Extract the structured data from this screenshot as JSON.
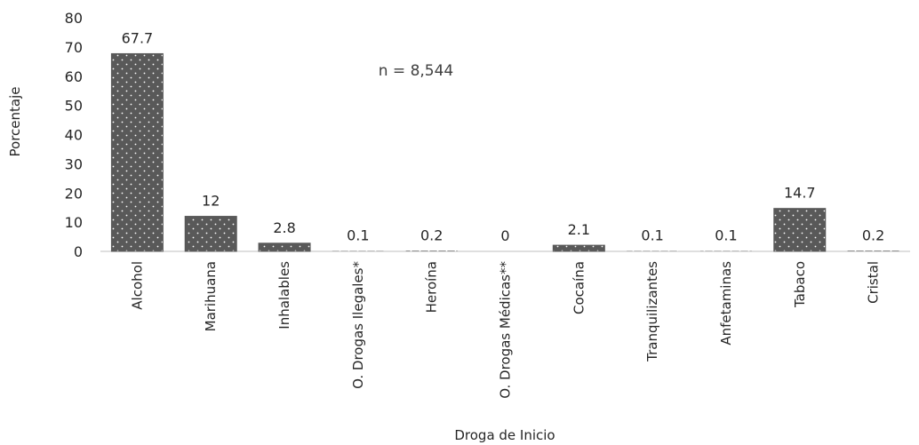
{
  "chart_data": {
    "type": "bar",
    "xlabel": "Droga de Inicio",
    "ylabel": "Porcentaje",
    "ylim": [
      0,
      80
    ],
    "yticks": [
      0,
      10,
      20,
      30,
      40,
      50,
      60,
      70,
      80
    ],
    "categories": [
      "Alcohol",
      "Marihuana",
      "Inhalables",
      "O. Drogas Ilegales*",
      "Heroína",
      "O. Drogas Médicas**",
      "Cocaína",
      "Tranquilizantes",
      "Anfetaminas",
      "Tabaco",
      "Cristal"
    ],
    "values": [
      67.7,
      12,
      2.8,
      0.1,
      0.2,
      0,
      2.1,
      0.1,
      0.1,
      14.7,
      0.2
    ],
    "data_labels": [
      "67.7",
      "12",
      "2.8",
      "0.1",
      "0.2",
      "0",
      "2.1",
      "0.1",
      "0.1",
      "14.7",
      "0.2"
    ],
    "annotation": "n = 8,544",
    "grid": false,
    "legend": "none",
    "bar_color": "#595959",
    "dot_color": "#ffffff"
  }
}
